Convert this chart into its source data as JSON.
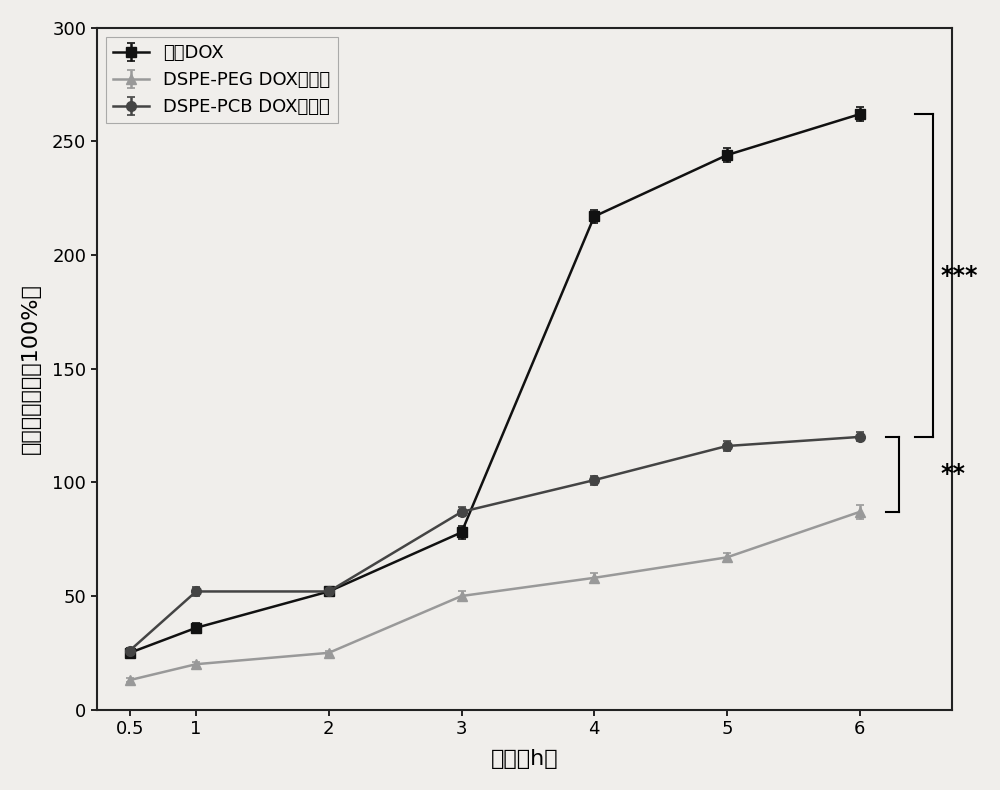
{
  "x": [
    0.5,
    1,
    2,
    3,
    4,
    5,
    6
  ],
  "free_dox": [
    25,
    36,
    52,
    78,
    217,
    244,
    262
  ],
  "free_dox_err": [
    2,
    2,
    2,
    3,
    3,
    3,
    3
  ],
  "dspe_peg": [
    13,
    20,
    25,
    50,
    58,
    67,
    87
  ],
  "dspe_peg_err": [
    1,
    1,
    1,
    2,
    2,
    2,
    3
  ],
  "dspe_pcb": [
    26,
    52,
    52,
    87,
    101,
    116,
    120
  ],
  "dspe_pcb_err": [
    1,
    2,
    2,
    2,
    2,
    2,
    2
  ],
  "free_dox_color": "#111111",
  "dspe_peg_color": "#999999",
  "dspe_pcb_color": "#444444",
  "xlabel": "时间（h）",
  "ylabel": "平均荧光强度（100%）",
  "ylim": [
    0,
    300
  ],
  "xlim": [
    0.25,
    6.7
  ],
  "yticks": [
    0,
    50,
    100,
    150,
    200,
    250,
    300
  ],
  "xticks": [
    0.5,
    1,
    2,
    3,
    4,
    5,
    6
  ],
  "legend_label_0": "自由DOX",
  "legend_label_1": "DSPE-PEG DOX脂质体",
  "legend_label_2": "DSPE-PCB DOX脂质体",
  "sig1_text": "***",
  "sig2_text": "**",
  "background_color": "#f0eeeb"
}
